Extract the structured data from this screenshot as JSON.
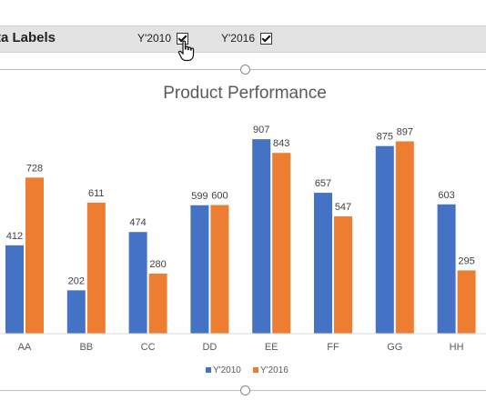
{
  "toolbar": {
    "title": "ta Labels",
    "checkboxes": [
      {
        "label": "Y'2010",
        "checked": true
      },
      {
        "label": "Y'2016",
        "checked": true
      }
    ]
  },
  "chart_data": {
    "type": "bar",
    "title": "Product Performance",
    "categories": [
      "AA",
      "BB",
      "CC",
      "DD",
      "EE",
      "FF",
      "GG",
      "HH"
    ],
    "series": [
      {
        "name": "Y'2010",
        "values": [
          412,
          202,
          474,
          599,
          907,
          657,
          875,
          603
        ],
        "color": "#4472c4"
      },
      {
        "name": "Y'2016",
        "values": [
          728,
          611,
          280,
          600,
          843,
          547,
          897,
          295
        ],
        "color": "#ed7d31"
      }
    ],
    "ylim": [
      0,
      1000
    ],
    "grid": false,
    "legend": "bottom-center",
    "data_labels": true,
    "axis_color": "#d9d9d9",
    "text_color": "#595959"
  }
}
